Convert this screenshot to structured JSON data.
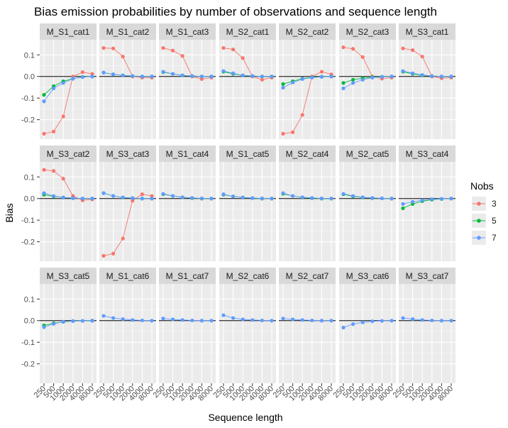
{
  "chart_data": {
    "type": "line",
    "title": "Bias emission probabilities by number of observations and sequence length",
    "xlabel": "Sequence length",
    "ylabel": "Bias",
    "x": [
      "250",
      "500",
      "1000",
      "2000",
      "4000",
      "8000"
    ],
    "ylim": [
      -0.29,
      0.17
    ],
    "yticks": [
      -0.2,
      -0.1,
      0.0,
      0.1
    ],
    "ytick_labels": [
      "-0.2",
      "-0.1",
      "0.0",
      "0.1"
    ],
    "grid": true,
    "legend": {
      "title": "Nobs",
      "position": "right",
      "entries": [
        {
          "label": "3",
          "color": "#F8766D"
        },
        {
          "label": "5",
          "color": "#00BA38"
        },
        {
          "label": "7",
          "color": "#619CFF"
        }
      ]
    },
    "panels": [
      {
        "label": "M_S1_cat1",
        "series": [
          {
            "name": "3",
            "values": [
              -0.265,
              -0.255,
              -0.185,
              0.0,
              0.02,
              0.012
            ]
          },
          {
            "name": "5",
            "values": [
              -0.085,
              -0.045,
              -0.022,
              -0.01,
              -0.002,
              0.0
            ]
          },
          {
            "name": "7",
            "values": [
              -0.115,
              -0.055,
              -0.03,
              -0.01,
              -0.003,
              0.0
            ]
          }
        ]
      },
      {
        "label": "M_S1_cat2",
        "series": [
          {
            "name": "3",
            "values": [
              0.132,
              0.13,
              0.092,
              0.0,
              -0.005,
              -0.005
            ]
          },
          {
            "name": "5",
            "values": [
              0.018,
              0.01,
              0.005,
              0.002,
              0.0,
              0.0
            ]
          },
          {
            "name": "7",
            "values": [
              0.018,
              0.01,
              0.005,
              0.002,
              0.0,
              0.0
            ]
          }
        ]
      },
      {
        "label": "M_S1_cat3",
        "series": [
          {
            "name": "3",
            "values": [
              0.132,
              0.12,
              0.095,
              0.0,
              -0.012,
              -0.005
            ]
          },
          {
            "name": "5",
            "values": [
              0.02,
              0.012,
              0.005,
              0.002,
              0.0,
              0.0
            ]
          },
          {
            "name": "7",
            "values": [
              0.022,
              0.012,
              0.005,
              0.002,
              0.0,
              0.0
            ]
          }
        ]
      },
      {
        "label": "M_S2_cat1",
        "series": [
          {
            "name": "3",
            "values": [
              0.132,
              0.125,
              0.085,
              0.0,
              -0.015,
              -0.005
            ]
          },
          {
            "name": "5",
            "values": [
              0.022,
              0.012,
              0.005,
              0.002,
              0.0,
              0.0
            ]
          },
          {
            "name": "7",
            "values": [
              0.025,
              0.015,
              0.005,
              0.002,
              0.0,
              0.0
            ]
          }
        ]
      },
      {
        "label": "M_S2_cat2",
        "series": [
          {
            "name": "3",
            "values": [
              -0.265,
              -0.258,
              -0.178,
              0.0,
              0.022,
              0.01
            ]
          },
          {
            "name": "5",
            "values": [
              -0.035,
              -0.022,
              -0.01,
              -0.004,
              -0.001,
              0.0
            ]
          },
          {
            "name": "7",
            "values": [
              -0.052,
              -0.028,
              -0.012,
              -0.005,
              -0.002,
              0.0
            ]
          }
        ]
      },
      {
        "label": "M_S2_cat3",
        "series": [
          {
            "name": "3",
            "values": [
              0.135,
              0.128,
              0.09,
              0.0,
              -0.01,
              -0.005
            ]
          },
          {
            "name": "5",
            "values": [
              -0.03,
              -0.015,
              -0.008,
              -0.003,
              -0.001,
              0.0
            ]
          },
          {
            "name": "7",
            "values": [
              -0.055,
              -0.03,
              -0.015,
              -0.005,
              -0.002,
              0.0
            ]
          }
        ]
      },
      {
        "label": "M_S3_cat1",
        "series": [
          {
            "name": "3",
            "values": [
              0.13,
              0.122,
              0.092,
              0.0,
              -0.008,
              -0.005
            ]
          },
          {
            "name": "5",
            "values": [
              0.022,
              0.012,
              0.005,
              0.002,
              0.0,
              0.0
            ]
          },
          {
            "name": "7",
            "values": [
              0.025,
              0.015,
              0.007,
              0.002,
              0.0,
              0.0
            ]
          }
        ]
      },
      {
        "label": "M_S3_cat2",
        "series": [
          {
            "name": "3",
            "values": [
              0.133,
              0.128,
              0.092,
              0.012,
              -0.008,
              -0.004
            ]
          },
          {
            "name": "5",
            "values": [
              0.018,
              0.01,
              0.005,
              0.002,
              0.0,
              0.0
            ]
          },
          {
            "name": "7",
            "values": [
              0.025,
              0.012,
              0.005,
              0.002,
              0.0,
              0.0
            ]
          }
        ]
      },
      {
        "label": "M_S3_cat3",
        "series": [
          {
            "name": "3",
            "values": [
              -0.265,
              -0.255,
              -0.185,
              -0.01,
              0.02,
              0.012
            ]
          },
          {
            "name": "5",
            "values": [
              0.025,
              0.012,
              0.005,
              0.002,
              0.0,
              0.0
            ]
          },
          {
            "name": "7",
            "values": [
              0.025,
              0.012,
              0.005,
              0.002,
              0.0,
              0.0
            ]
          }
        ]
      },
      {
        "label": "M_S1_cat4",
        "series": [
          {
            "name": "5",
            "values": [
              0.02,
              0.012,
              0.006,
              0.002,
              0.0,
              0.0
            ]
          },
          {
            "name": "7",
            "values": [
              0.022,
              0.012,
              0.006,
              0.003,
              0.001,
              0.0
            ]
          }
        ]
      },
      {
        "label": "M_S1_cat5",
        "series": [
          {
            "name": "5",
            "values": [
              0.018,
              0.01,
              0.005,
              0.002,
              0.0,
              0.0
            ]
          },
          {
            "name": "7",
            "values": [
              0.02,
              0.01,
              0.005,
              0.002,
              0.001,
              0.0
            ]
          }
        ]
      },
      {
        "label": "M_S2_cat4",
        "series": [
          {
            "name": "5",
            "values": [
              0.022,
              0.012,
              0.005,
              0.002,
              0.0,
              0.0
            ]
          },
          {
            "name": "7",
            "values": [
              0.025,
              0.012,
              0.006,
              0.003,
              0.001,
              0.0
            ]
          }
        ]
      },
      {
        "label": "M_S2_cat5",
        "series": [
          {
            "name": "5",
            "values": [
              0.02,
              0.01,
              0.005,
              0.002,
              0.001,
              0.0
            ]
          },
          {
            "name": "7",
            "values": [
              0.022,
              0.012,
              0.006,
              0.003,
              0.001,
              0.0
            ]
          }
        ]
      },
      {
        "label": "M_S3_cat4",
        "series": [
          {
            "name": "5",
            "values": [
              -0.045,
              -0.025,
              -0.012,
              -0.005,
              -0.002,
              0.0
            ]
          },
          {
            "name": "7",
            "values": [
              -0.025,
              -0.015,
              -0.008,
              -0.003,
              -0.001,
              0.0
            ]
          }
        ]
      },
      {
        "label": "M_S3_cat5",
        "series": [
          {
            "name": "5",
            "values": [
              -0.022,
              -0.012,
              -0.006,
              -0.002,
              -0.001,
              0.0
            ]
          },
          {
            "name": "7",
            "values": [
              -0.03,
              -0.015,
              -0.005,
              -0.002,
              -0.001,
              0.0
            ]
          }
        ]
      },
      {
        "label": "M_S1_cat6",
        "series": [
          {
            "name": "7",
            "values": [
              0.022,
              0.012,
              0.007,
              0.003,
              0.001,
              0.0
            ]
          }
        ]
      },
      {
        "label": "M_S1_cat7",
        "series": [
          {
            "name": "7",
            "values": [
              0.01,
              0.006,
              0.003,
              0.001,
              0.0,
              0.0
            ]
          }
        ]
      },
      {
        "label": "M_S2_cat6",
        "series": [
          {
            "name": "7",
            "values": [
              0.025,
              0.012,
              0.006,
              0.003,
              0.001,
              0.0
            ]
          }
        ]
      },
      {
        "label": "M_S2_cat7",
        "series": [
          {
            "name": "7",
            "values": [
              0.01,
              0.006,
              0.003,
              0.001,
              0.0,
              0.0
            ]
          }
        ]
      },
      {
        "label": "M_S3_cat6",
        "series": [
          {
            "name": "7",
            "values": [
              -0.032,
              -0.016,
              -0.008,
              -0.003,
              -0.001,
              0.0
            ]
          }
        ]
      },
      {
        "label": "M_S3_cat7",
        "series": [
          {
            "name": "7",
            "values": [
              0.012,
              0.007,
              0.003,
              0.001,
              0.0,
              0.0
            ]
          }
        ]
      }
    ]
  }
}
